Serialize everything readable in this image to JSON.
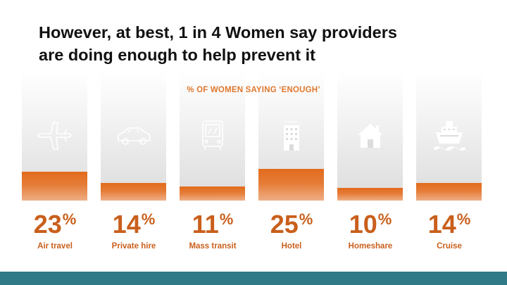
{
  "slide": {
    "title_line1": "However, at best, 1 in 4 Women say providers",
    "title_line2": "are doing enough to help prevent it"
  },
  "chart_data": {
    "type": "bar",
    "title": "% OF WOMEN SAYING ‘ENOUGH’",
    "categories": [
      "Air travel",
      "Private hire",
      "Mass transit",
      "Hotel",
      "Homeshare",
      "Cruise"
    ],
    "values": [
      23,
      14,
      11,
      25,
      10,
      14
    ],
    "value_labels": [
      "23",
      "14",
      "11",
      "25",
      "10",
      "14"
    ],
    "unit": "%",
    "icons": [
      "airplane-icon",
      "car-icon",
      "bus-icon",
      "hotel-building-icon",
      "house-icon",
      "cruise-ship-icon"
    ],
    "ylim": [
      0,
      100
    ],
    "grid": false,
    "legend": "none"
  },
  "colors": {
    "accent": "#e26b1c",
    "value_text": "#c95f1c",
    "footer": "#2f7a86",
    "icon": "#ffffff"
  }
}
